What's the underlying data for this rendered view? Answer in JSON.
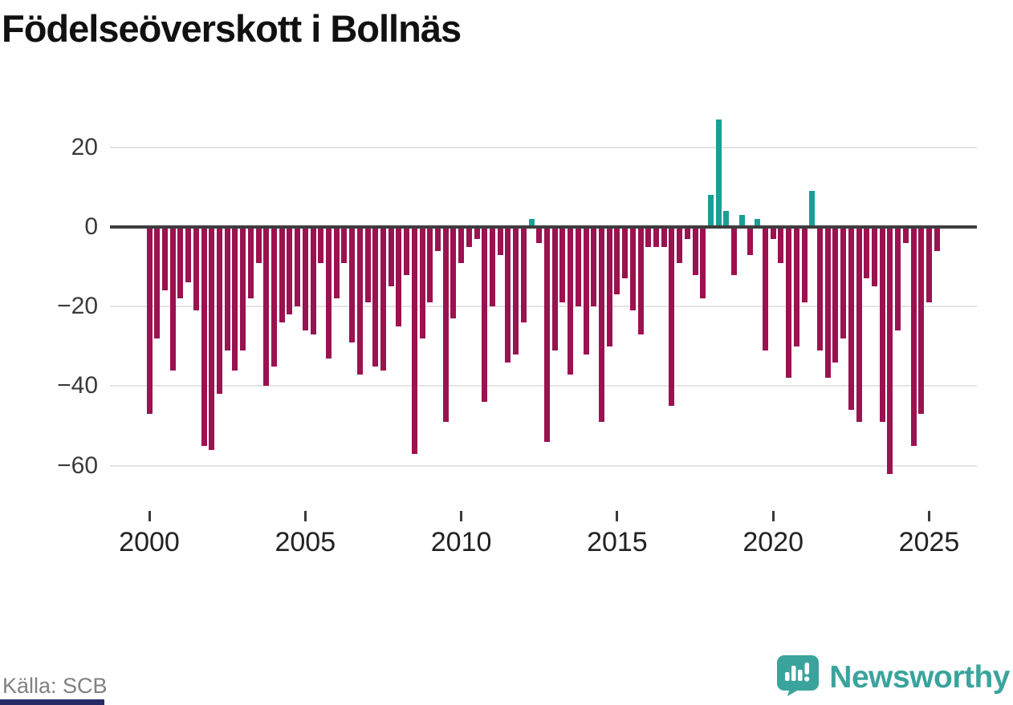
{
  "title": "Födelseöverskott i Bollnäs",
  "source": "Källa: SCB",
  "brand": {
    "name": "Newsworthy",
    "color": "#3aa49c"
  },
  "colors": {
    "positive": "#1a9e96",
    "negative": "#9b1250",
    "axis": "#3d3d3d",
    "grid": "#e4e4e4",
    "bottom_strip": "#272b66"
  },
  "chart_data": {
    "type": "bar",
    "title": "Födelseöverskott i Bollnäs",
    "frequency": "quarterly",
    "x_start": "2000 Q1",
    "x_end": "2025 Q2",
    "x_tick_years": [
      2000,
      2005,
      2010,
      2015,
      2020,
      2025
    ],
    "y_ticks": [
      {
        "v": 20,
        "label": "20"
      },
      {
        "v": 0,
        "label": "0"
      },
      {
        "v": -20,
        "label": "−20"
      },
      {
        "v": -40,
        "label": "−40"
      },
      {
        "v": -60,
        "label": "−60"
      }
    ],
    "ylim": [
      -66,
      28
    ],
    "grid": true,
    "legend": "none",
    "values": [
      -47,
      -28,
      -16,
      -36,
      -18,
      -14,
      -21,
      -55,
      -56,
      -42,
      -31,
      -36,
      -31,
      -18,
      -9,
      -40,
      -35,
      -24,
      -22,
      -20,
      -26,
      -27,
      -9,
      -33,
      -18,
      -9,
      -29,
      -37,
      -19,
      -35,
      -36,
      -15,
      -25,
      -12,
      -57,
      -28,
      -19,
      -6,
      -49,
      -23,
      -9,
      -5,
      -3,
      -44,
      -20,
      -7,
      -34,
      -32,
      -24,
      2,
      -4,
      -54,
      -31,
      -19,
      -37,
      -20,
      -32,
      -20,
      -49,
      -30,
      -17,
      -13,
      -21,
      -27,
      -5,
      -5,
      -5,
      -45,
      -9,
      -3,
      -12,
      -18,
      8,
      27,
      4,
      -12,
      3,
      -7,
      2,
      -31,
      -3,
      -9,
      -38,
      -30,
      -19,
      9,
      -31,
      -38,
      -34,
      -28,
      -46,
      -49,
      -13,
      -15,
      -49,
      -62,
      -26,
      -4,
      -55,
      -47,
      -19,
      -6
    ]
  }
}
